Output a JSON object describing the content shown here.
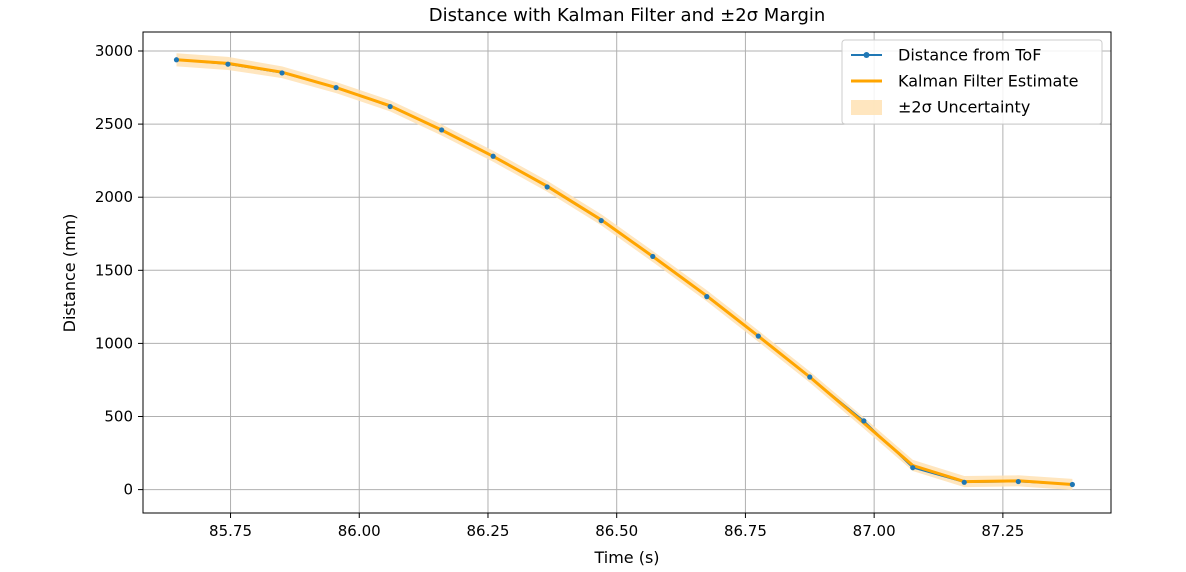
{
  "chart_data": {
    "type": "line",
    "title": "Distance with Kalman Filter and ±2σ Margin",
    "xlabel": "Time (s)",
    "ylabel": "Distance (mm)",
    "xlim": [
      85.58,
      87.46
    ],
    "ylim": [
      -160,
      3130
    ],
    "xticks": [
      85.75,
      86.0,
      86.25,
      86.5,
      86.75,
      87.0,
      87.25
    ],
    "xtick_labels": [
      "85.75",
      "86.00",
      "86.25",
      "86.50",
      "86.75",
      "87.00",
      "87.25"
    ],
    "yticks": [
      0,
      500,
      1000,
      1500,
      2000,
      2500,
      3000
    ],
    "ytick_labels": [
      "0",
      "500",
      "1000",
      "1500",
      "2000",
      "2500",
      "3000"
    ],
    "grid": true,
    "legend_position": "top-right",
    "colors": {
      "tof": "#1f77b4",
      "kalman": "#ffa500",
      "band": "#ffe2b4",
      "grid": "#b0b0b0"
    },
    "series": [
      {
        "name": "Distance from ToF",
        "x": [
          85.645,
          85.745,
          85.85,
          85.955,
          86.06,
          86.16,
          86.26,
          86.365,
          86.47,
          86.57,
          86.675,
          86.775,
          86.875,
          86.98,
          87.075,
          87.175,
          87.28,
          87.385
        ],
        "y": [
          2940,
          2910,
          2850,
          2750,
          2620,
          2460,
          2280,
          2070,
          1840,
          1595,
          1320,
          1050,
          770,
          470,
          150,
          50,
          55,
          35
        ]
      },
      {
        "name": "Kalman Filter Estimate",
        "x": [
          85.645,
          85.745,
          85.85,
          85.955,
          86.06,
          86.16,
          86.26,
          86.365,
          86.47,
          86.57,
          86.675,
          86.775,
          86.875,
          86.98,
          87.075,
          87.175,
          87.28,
          87.385
        ],
        "y": [
          2940,
          2915,
          2855,
          2750,
          2625,
          2460,
          2280,
          2075,
          1845,
          1595,
          1325,
          1050,
          770,
          455,
          165,
          55,
          60,
          35
        ]
      }
    ],
    "uncertainty": {
      "name": "±2σ Uncertainty",
      "half_width": [
        45,
        45,
        40,
        38,
        38,
        38,
        38,
        38,
        38,
        38,
        38,
        38,
        38,
        38,
        38,
        38,
        38,
        38
      ]
    }
  }
}
